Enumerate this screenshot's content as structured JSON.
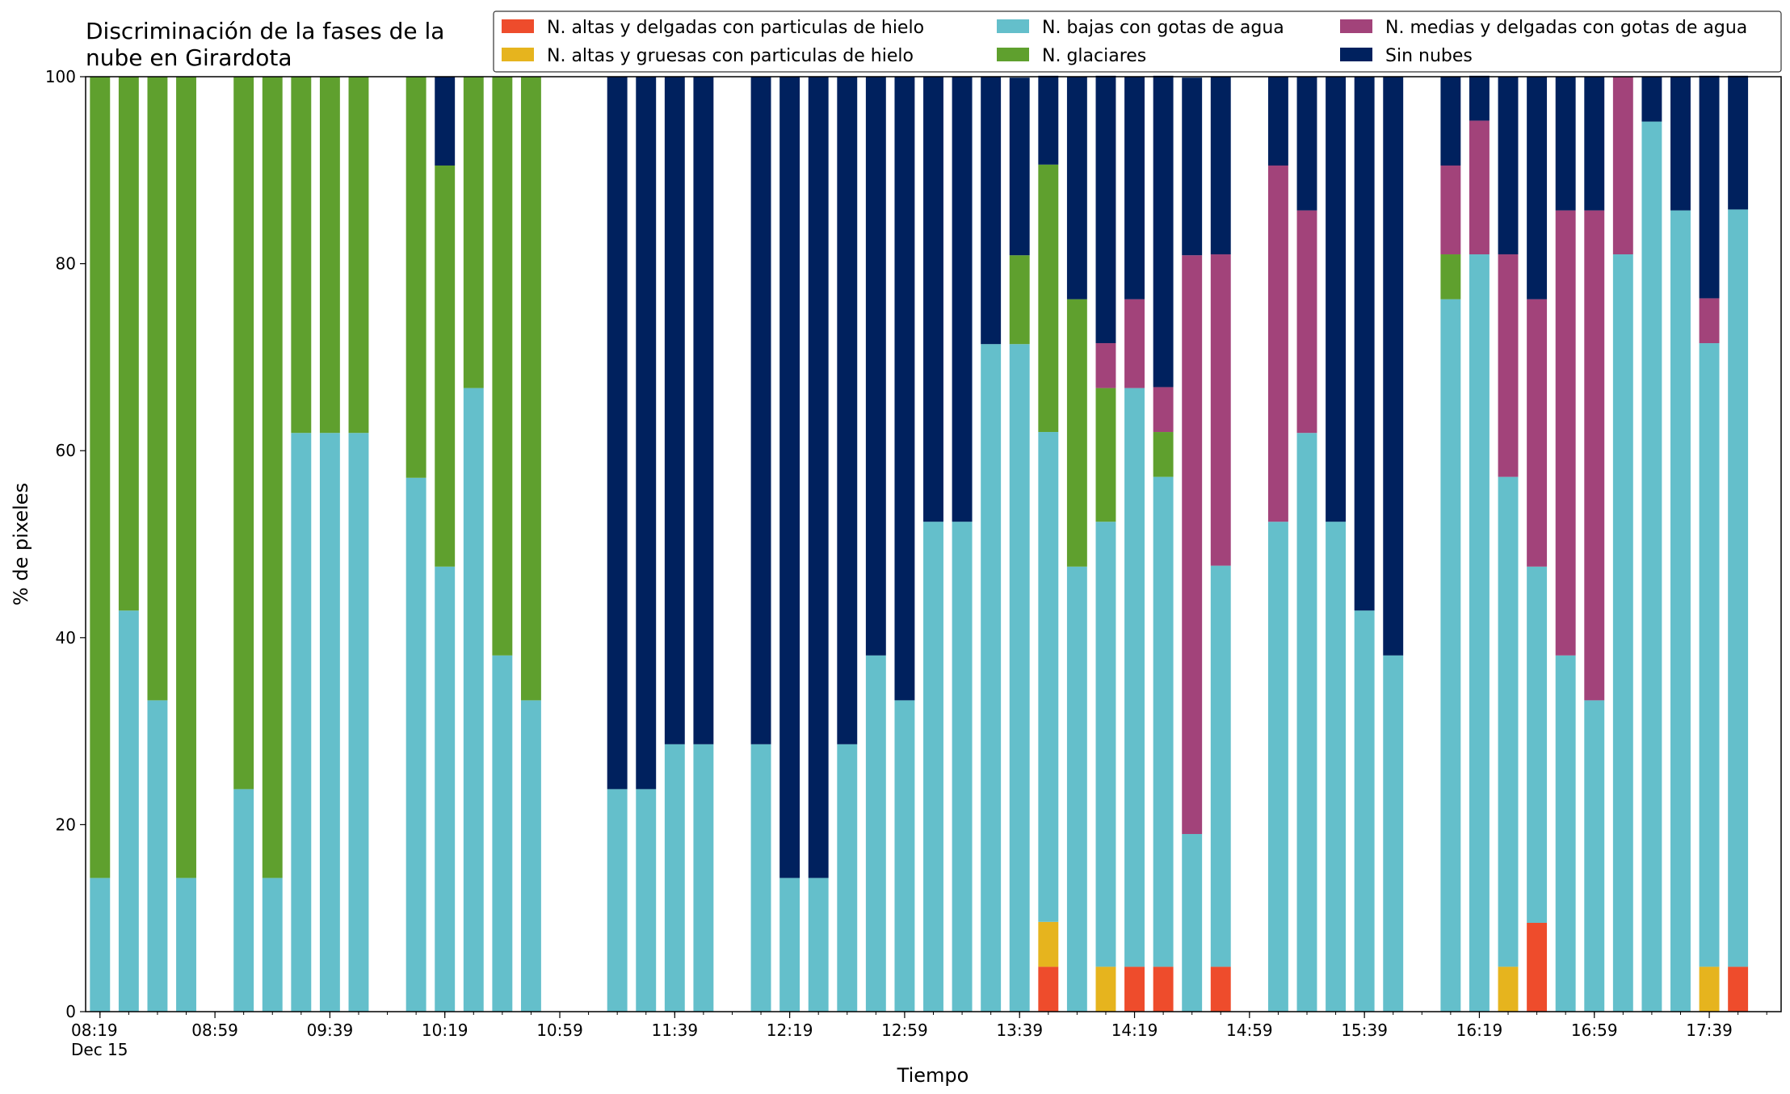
{
  "chart_data": {
    "type": "stacked_bar",
    "title": "Discriminación de la fases de la\nnube en Girardota",
    "xlabel": "Tiempo",
    "ylabel": "% de pixeles",
    "categories": [
      "08:19",
      "08:29",
      "08:39",
      "08:49",
      "08:59",
      "09:09",
      "09:19",
      "09:29",
      "09:39",
      "09:49",
      "09:59",
      "10:09",
      "10:19",
      "10:29",
      "10:39",
      "10:49",
      "10:59",
      "11:09",
      "11:19",
      "11:29",
      "11:39",
      "11:49",
      "11:59",
      "12:09",
      "12:19",
      "12:29",
      "12:39",
      "12:49",
      "12:59",
      "13:09",
      "13:19",
      "13:29",
      "13:39",
      "13:49",
      "13:59",
      "14:09",
      "14:19",
      "14:29",
      "14:39",
      "14:49",
      "14:59",
      "15:09",
      "15:19",
      "15:29",
      "15:39",
      "15:49",
      "15:59",
      "16:09",
      "16:19",
      "16:29",
      "16:39",
      "16:49",
      "16:59",
      "17:09",
      "17:19",
      "17:29",
      "17:39",
      "17:49",
      "17:59"
    ],
    "xticks": [
      "08:19",
      "08:59",
      "09:39",
      "10:19",
      "10:59",
      "11:39",
      "12:19",
      "12:59",
      "13:39",
      "14:19",
      "14:59",
      "15:39",
      "16:19",
      "16:59",
      "17:39"
    ],
    "x_date": "Dec 15",
    "ylim": [
      0,
      100
    ],
    "yticks": [
      0,
      20,
      40,
      60,
      80,
      100
    ],
    "series": [
      {
        "name": "N. altas y delgadas con particulas de hielo",
        "color": "#ee4c2c",
        "values": [
          0,
          0,
          0,
          0,
          null,
          0,
          0,
          0,
          0,
          0,
          null,
          0,
          0,
          0,
          0,
          0,
          null,
          null,
          0,
          0,
          0,
          0,
          null,
          0,
          0,
          0,
          0,
          0,
          0,
          0,
          0,
          0,
          0,
          4.8,
          0,
          0,
          4.8,
          4.8,
          0,
          4.8,
          null,
          0,
          0,
          0,
          0,
          0,
          null,
          0,
          0,
          0,
          9.5,
          0,
          0,
          0,
          0,
          0,
          0,
          4.8,
          null
        ]
      },
      {
        "name": "N. altas y gruesas con particulas de hielo",
        "color": "#e6b41e",
        "values": [
          0,
          0,
          0,
          0,
          null,
          0,
          0,
          0,
          0,
          0,
          null,
          0,
          0,
          0,
          0,
          0,
          null,
          null,
          0,
          0,
          0,
          0,
          null,
          0,
          0,
          0,
          0,
          0,
          0,
          0,
          0,
          0,
          0,
          4.8,
          0,
          4.8,
          0,
          0,
          0,
          0,
          null,
          0,
          0,
          0,
          0,
          0,
          null,
          0,
          0,
          4.8,
          0,
          0,
          0,
          0,
          0,
          0,
          4.8,
          0,
          null
        ]
      },
      {
        "name": "N. bajas con gotas de agua",
        "color": "#64bfcb",
        "values": [
          14.3,
          42.9,
          33.3,
          14.3,
          null,
          23.8,
          14.3,
          61.9,
          61.9,
          61.9,
          null,
          57.1,
          47.6,
          66.7,
          38.1,
          33.3,
          null,
          null,
          23.8,
          23.8,
          28.6,
          28.6,
          null,
          28.6,
          14.3,
          14.3,
          28.6,
          38.1,
          33.3,
          52.4,
          52.4,
          71.4,
          71.4,
          52.4,
          47.6,
          47.6,
          61.9,
          52.4,
          19,
          42.9,
          null,
          52.4,
          61.9,
          52.4,
          42.9,
          38.1,
          null,
          76.2,
          81,
          52.4,
          38.1,
          38.1,
          33.3,
          81,
          95.2,
          85.7,
          66.7,
          81,
          null
        ]
      },
      {
        "name": "N. glaciares",
        "color": "#5fa02e",
        "values": [
          85.7,
          57.1,
          66.7,
          85.7,
          null,
          76.2,
          85.7,
          38.1,
          38.1,
          38.1,
          null,
          42.9,
          42.9,
          33.3,
          61.9,
          66.7,
          null,
          null,
          0,
          0,
          0,
          0,
          null,
          0,
          0,
          0,
          0,
          0,
          0,
          0,
          0,
          0,
          9.5,
          28.6,
          28.6,
          14.3,
          0,
          4.8,
          0,
          0,
          null,
          0,
          0,
          0,
          0,
          0,
          null,
          4.8,
          0,
          0,
          0,
          0,
          0,
          0,
          0,
          0,
          0,
          0,
          null
        ]
      },
      {
        "name": "N. medias y delgadas con gotas de agua",
        "color": "#a2437a",
        "values": [
          0,
          0,
          0,
          0,
          null,
          0,
          0,
          0,
          0,
          0,
          null,
          0,
          0,
          0,
          0,
          0,
          null,
          null,
          0,
          0,
          0,
          0,
          null,
          0,
          0,
          0,
          0,
          0,
          0,
          0,
          0,
          0,
          0,
          0,
          0,
          4.8,
          9.5,
          4.8,
          61.9,
          33.3,
          null,
          38.1,
          23.8,
          0,
          0,
          0,
          null,
          9.5,
          14.3,
          23.8,
          28.6,
          47.6,
          52.4,
          19,
          0,
          0,
          4.8,
          0,
          null
        ]
      },
      {
        "name": "Sin nubes",
        "color": "#00215e",
        "values": [
          0,
          0,
          0,
          0,
          null,
          0,
          0,
          0,
          0,
          0,
          null,
          0,
          9.5,
          0,
          0,
          0,
          null,
          null,
          76.2,
          76.2,
          71.4,
          71.4,
          null,
          71.4,
          85.7,
          85.7,
          71.4,
          61.9,
          66.7,
          47.6,
          47.6,
          28.6,
          19,
          9.5,
          23.8,
          28.6,
          23.8,
          33.3,
          19,
          19,
          null,
          9.5,
          14.3,
          47.6,
          57.1,
          61.9,
          null,
          9.5,
          4.8,
          19,
          23.8,
          14.3,
          14.3,
          0,
          4.8,
          14.3,
          23.8,
          14.3,
          null
        ]
      }
    ]
  }
}
